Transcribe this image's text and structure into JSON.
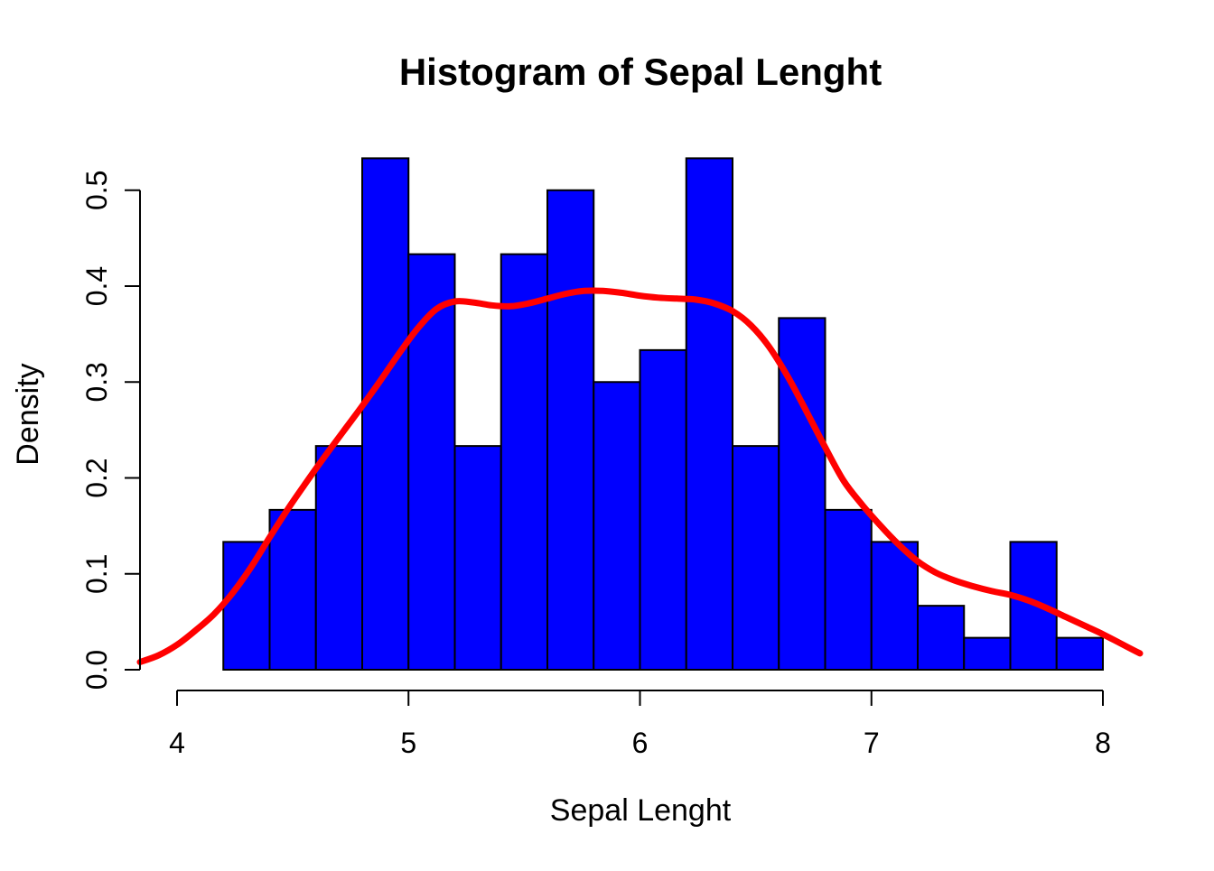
{
  "chart_data": {
    "type": "bar",
    "subtype": "histogram-with-density-overlay",
    "title": "Histogram of Sepal Lenght",
    "xlabel": "Sepal Lenght",
    "ylabel": "Density",
    "x_ticks": [
      4,
      5,
      6,
      7,
      8
    ],
    "y_ticks": [
      "0.0",
      "0.1",
      "0.2",
      "0.3",
      "0.4",
      "0.5"
    ],
    "y_tick_values": [
      0.0,
      0.1,
      0.2,
      0.3,
      0.4,
      0.5
    ],
    "xlim": [
      4,
      8
    ],
    "ylim": [
      0,
      0.5333
    ],
    "usr_x_range": [
      3.84,
      8.16
    ],
    "usr_y_range": [
      -0.0213,
      0.5546
    ],
    "grid": false,
    "legend": "none",
    "bar_color": "#0000FF",
    "bar_border_color": "#000000",
    "curve_color": "#FF0000",
    "axis_color": "#000000",
    "background_color": "#FFFFFF",
    "bins": {
      "start": 4.2,
      "width": 0.2,
      "densities": [
        0.1333,
        0.1667,
        0.2333,
        0.5333,
        0.4333,
        0.2333,
        0.4333,
        0.5,
        0.3,
        0.3333,
        0.5333,
        0.2333,
        0.3667,
        0.1667,
        0.1333,
        0.0667,
        0.0333,
        0.1333,
        0.0333
      ]
    },
    "density_curve": {
      "x": [
        3.84,
        3.92,
        4.0,
        4.08,
        4.16,
        4.24,
        4.32,
        4.4,
        4.48,
        4.56,
        4.64,
        4.72,
        4.8,
        4.88,
        4.96,
        5.04,
        5.12,
        5.2,
        5.28,
        5.36,
        5.44,
        5.52,
        5.6,
        5.68,
        5.76,
        5.84,
        5.92,
        6.0,
        6.08,
        6.16,
        6.24,
        6.32,
        6.4,
        6.48,
        6.56,
        6.64,
        6.72,
        6.8,
        6.88,
        6.96,
        7.04,
        7.12,
        7.2,
        7.28,
        7.36,
        7.44,
        7.52,
        7.6,
        7.68,
        7.76,
        7.84,
        7.92,
        8.0,
        8.08,
        8.16
      ],
      "y": [
        0.008,
        0.015,
        0.026,
        0.041,
        0.058,
        0.08,
        0.107,
        0.138,
        0.168,
        0.196,
        0.223,
        0.249,
        0.275,
        0.302,
        0.33,
        0.356,
        0.376,
        0.384,
        0.383,
        0.38,
        0.379,
        0.382,
        0.387,
        0.392,
        0.395,
        0.395,
        0.393,
        0.39,
        0.388,
        0.387,
        0.386,
        0.382,
        0.374,
        0.359,
        0.336,
        0.305,
        0.269,
        0.232,
        0.197,
        0.172,
        0.15,
        0.13,
        0.113,
        0.101,
        0.093,
        0.087,
        0.082,
        0.078,
        0.072,
        0.064,
        0.055,
        0.046,
        0.037,
        0.027,
        0.017
      ]
    }
  }
}
